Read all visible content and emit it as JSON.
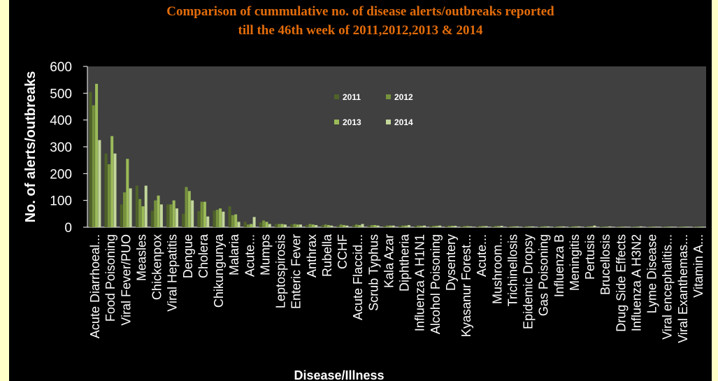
{
  "chart_data": {
    "type": "bar",
    "title_line1": "Comparison of cummulative no. of disease alerts/outbreaks reported",
    "title_line2": "till the 46th week of 2011,2012,2013 & 2014",
    "xlabel": "Disease/Illness",
    "ylabel": "No. of alerts/outbreaks",
    "ylim": [
      0,
      600
    ],
    "yticks": [
      0,
      100,
      200,
      300,
      400,
      500,
      600
    ],
    "legend_position": "top-center",
    "categories": [
      "Acute Diarrhoeal...",
      "Food Poisoning",
      "Viral Fever/PUO",
      "Measles",
      "Chickenpox",
      "Viral Hepatitis",
      "Dengue",
      "Cholera",
      "Chikungunya",
      "Malaria",
      "Acute...",
      "Mumps",
      "Leptospirosis",
      "Enteric Fever",
      "Anthrax",
      "Rubella",
      "CCHF",
      "Acute Flaccid...",
      "Scrub Typhus",
      "Kala Azar",
      "Diphtheria",
      "Influenza A H1N1",
      "Alcohol Poisoning",
      "Dysentery",
      "Kyasanur Forest...",
      "Acute...",
      "Mushroom...",
      "Trichinellosis",
      "Epidemic Dropsy",
      "Gas Poisoning",
      "Influenza B",
      "Meningitis",
      "Pertusis",
      "Brucellosis",
      "Drug Side Effects",
      "Influenza A H3N2",
      "Lyme Disease",
      "Viral encephalitis...",
      "Viral Exanthemas...",
      "Vitamin A..."
    ],
    "series": [
      {
        "name": "2011",
        "color": "#4f6228",
        "values": [
          505,
          275,
          85,
          155,
          62,
          85,
          50,
          60,
          62,
          78,
          20,
          18,
          12,
          10,
          8,
          8,
          6,
          7,
          6,
          5,
          5,
          4,
          4,
          4,
          3,
          3,
          3,
          2,
          2,
          2,
          2,
          2,
          2,
          2,
          1,
          1,
          1,
          1,
          1,
          1
        ]
      },
      {
        "name": "2012",
        "color": "#76923c",
        "values": [
          455,
          235,
          130,
          105,
          100,
          85,
          150,
          95,
          65,
          45,
          10,
          25,
          12,
          12,
          12,
          10,
          10,
          10,
          8,
          6,
          6,
          6,
          5,
          5,
          4,
          4,
          4,
          3,
          3,
          3,
          3,
          3,
          3,
          2,
          2,
          2,
          2,
          2,
          2,
          2
        ]
      },
      {
        "name": "2013",
        "color": "#9bbb59",
        "values": [
          535,
          340,
          255,
          78,
          118,
          100,
          135,
          95,
          70,
          48,
          12,
          20,
          12,
          10,
          10,
          8,
          8,
          8,
          8,
          6,
          6,
          5,
          5,
          5,
          4,
          4,
          4,
          3,
          3,
          3,
          3,
          3,
          3,
          2,
          2,
          2,
          2,
          2,
          2,
          2
        ]
      },
      {
        "name": "2014",
        "color": "#c3d69b",
        "values": [
          325,
          275,
          145,
          155,
          85,
          70,
          100,
          40,
          58,
          20,
          38,
          12,
          10,
          10,
          8,
          6,
          6,
          12,
          6,
          6,
          8,
          6,
          6,
          5,
          3,
          4,
          5,
          3,
          3,
          3,
          3,
          3,
          6,
          3,
          2,
          3,
          2,
          2,
          2,
          2
        ]
      }
    ]
  }
}
